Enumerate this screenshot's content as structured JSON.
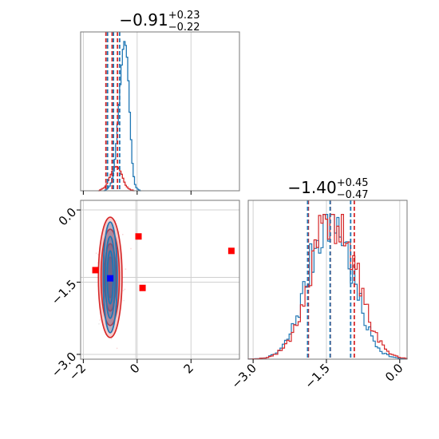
{
  "chart_data": [
    {
      "type": "histogram",
      "panel": "x-marginal",
      "title": {
        "value": "−0.91",
        "plus": "+0.23",
        "minus": "−0.22"
      },
      "xlim": [
        -2.1,
        3.8
      ],
      "tick_values": [
        -2,
        0,
        2
      ],
      "quantiles_blue": [
        -1.13,
        -0.91,
        -0.68
      ],
      "quantiles_red": [
        -1.16,
        -0.93,
        -0.73
      ],
      "series": [
        {
          "color": "#1f77b4",
          "bin_width": 0.05,
          "start": -1.25,
          "counts": [
            0,
            1,
            2,
            4,
            6,
            10,
            16,
            25,
            40,
            60,
            85,
            110,
            135,
            160,
            180,
            190,
            185,
            170,
            140,
            100,
            65,
            35,
            18,
            8,
            4,
            2,
            1,
            0
          ]
        },
        {
          "color": "#d62728",
          "bin_width": 0.05,
          "start": -1.45,
          "counts": [
            0,
            1,
            2,
            3,
            4,
            6,
            9,
            13,
            17,
            21,
            25,
            28,
            30,
            31,
            30,
            28,
            25,
            21,
            16,
            11,
            7,
            5,
            3,
            2,
            1,
            1,
            0
          ]
        }
      ]
    },
    {
      "type": "scatter-contour",
      "panel": "joint",
      "xlim": [
        -2.1,
        3.8
      ],
      "ylim": [
        -3.1,
        0.2
      ],
      "x_ticks": [
        -2,
        0,
        2
      ],
      "x_tick_labels": [
        "−2",
        "0",
        "2"
      ],
      "y_ticks": [
        0.0,
        -1.5,
        -3.0
      ],
      "y_tick_labels": [
        "0.0",
        "−1.5",
        "−3.0"
      ],
      "truth_lines": {
        "x": -0.05,
        "y": -1.4
      },
      "red_markers": [
        [
          -1.55,
          -1.25
        ],
        [
          0.05,
          -0.55
        ],
        [
          0.2,
          -1.62
        ],
        [
          3.5,
          -0.85
        ]
      ],
      "blue_marker": [
        -1.0,
        -1.42
      ],
      "contour_center": [
        -1.0,
        -1.4
      ]
    },
    {
      "type": "histogram",
      "panel": "y-marginal",
      "title": {
        "value": "−1.40",
        "plus": "+0.45",
        "minus": "−0.47"
      },
      "xlim": [
        -3.1,
        0.15
      ],
      "tick_values": [
        -3.0,
        -1.5,
        0.0
      ],
      "tick_labels": [
        "−3.0",
        "−1.5",
        "0.0"
      ],
      "quantiles_blue": [
        -1.86,
        -1.4,
        -0.98
      ],
      "quantiles_red": [
        -1.87,
        -1.42,
        -0.93
      ],
      "series": [
        {
          "color": "#1f77b4",
          "mean": -1.42,
          "sd": 0.44,
          "peak": 178,
          "seed": 7
        },
        {
          "color": "#d62728",
          "mean": -1.35,
          "sd": 0.46,
          "peak": 165,
          "seed": 19
        }
      ]
    }
  ]
}
